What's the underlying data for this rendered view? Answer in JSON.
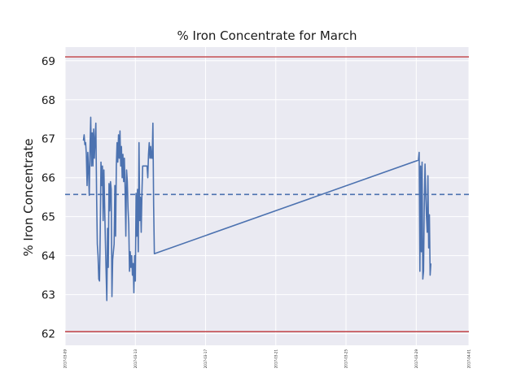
{
  "chart_data": {
    "type": "line",
    "title": "% Iron Concentrate for March",
    "xlabel": "",
    "ylabel": "% Iron Concentrate",
    "xlim": [
      "2017-03-09",
      "2017-04-01"
    ],
    "ylim": [
      61.7,
      69.35
    ],
    "x_ticks": [
      "2017-03-09",
      "2017-03-13",
      "2017-03-17",
      "2017-03-21",
      "2017-03-25",
      "2017-03-29",
      "2017-04-01"
    ],
    "y_ticks": [
      62,
      63,
      64,
      65,
      66,
      67,
      68,
      69
    ],
    "grid": true,
    "reference_lines": [
      {
        "kind": "limit",
        "y": 69.1,
        "style": "solid",
        "color": "#c44e52"
      },
      {
        "kind": "mean",
        "y": 65.57,
        "style": "dashed",
        "color": "#4c72b0"
      },
      {
        "kind": "limit",
        "y": 62.05,
        "style": "solid",
        "color": "#c44e52"
      }
    ],
    "series": [
      {
        "color": "#4c72b0",
        "points": [
          [
            "2017-03-10 01:00",
            66.95
          ],
          [
            "2017-03-10 02:00",
            67.1
          ],
          [
            "2017-03-10 03:00",
            66.85
          ],
          [
            "2017-03-10 04:00",
            66.9
          ],
          [
            "2017-03-10 05:00",
            66.6
          ],
          [
            "2017-03-10 06:00",
            65.8
          ],
          [
            "2017-03-10 07:00",
            66.65
          ],
          [
            "2017-03-10 08:00",
            66.2
          ],
          [
            "2017-03-10 09:00",
            65.55
          ],
          [
            "2017-03-10 10:00",
            66.75
          ],
          [
            "2017-03-10 11:00",
            67.55
          ],
          [
            "2017-03-10 12:00",
            66.3
          ],
          [
            "2017-03-10 13:00",
            67.15
          ],
          [
            "2017-03-10 14:00",
            66.3
          ],
          [
            "2017-03-10 15:00",
            67.25
          ],
          [
            "2017-03-10 16:00",
            66.5
          ],
          [
            "2017-03-10 17:00",
            67.0
          ],
          [
            "2017-03-10 18:00",
            67.4
          ],
          [
            "2017-03-10 19:00",
            65.6
          ],
          [
            "2017-03-10 20:00",
            64.3
          ],
          [
            "2017-03-10 21:00",
            64.0
          ],
          [
            "2017-03-10 22:00",
            63.4
          ],
          [
            "2017-03-10 23:00",
            63.35
          ],
          [
            "2017-03-11 00:00",
            64.6
          ],
          [
            "2017-03-11 01:00",
            66.4
          ],
          [
            "2017-03-11 02:00",
            65.8
          ],
          [
            "2017-03-11 03:00",
            66.3
          ],
          [
            "2017-03-11 04:00",
            64.9
          ],
          [
            "2017-03-11 05:00",
            66.2
          ],
          [
            "2017-03-11 06:00",
            65.3
          ],
          [
            "2017-03-11 07:00",
            64.4
          ],
          [
            "2017-03-11 08:00",
            63.6
          ],
          [
            "2017-03-11 09:00",
            62.85
          ],
          [
            "2017-03-11 10:00",
            64.7
          ],
          [
            "2017-03-11 11:00",
            63.7
          ],
          [
            "2017-03-11 12:00",
            65.85
          ],
          [
            "2017-03-11 13:00",
            65.15
          ],
          [
            "2017-03-11 14:00",
            65.9
          ],
          [
            "2017-03-11 15:00",
            65.7
          ],
          [
            "2017-03-11 16:00",
            62.95
          ],
          [
            "2017-03-11 17:00",
            63.9
          ],
          [
            "2017-03-11 18:00",
            64.1
          ],
          [
            "2017-03-11 19:00",
            64.3
          ],
          [
            "2017-03-11 20:00",
            65.8
          ],
          [
            "2017-03-11 21:00",
            64.5
          ],
          [
            "2017-03-11 22:00",
            66.3
          ],
          [
            "2017-03-11 23:00",
            66.9
          ],
          [
            "2017-03-12 00:00",
            66.4
          ],
          [
            "2017-03-12 01:00",
            67.1
          ],
          [
            "2017-03-12 02:00",
            66.5
          ],
          [
            "2017-03-12 03:00",
            67.2
          ],
          [
            "2017-03-12 04:00",
            66.3
          ],
          [
            "2017-03-12 05:00",
            66.8
          ],
          [
            "2017-03-12 06:00",
            66.0
          ],
          [
            "2017-03-12 07:00",
            66.6
          ],
          [
            "2017-03-12 08:00",
            65.9
          ],
          [
            "2017-03-12 09:00",
            66.5
          ],
          [
            "2017-03-12 10:00",
            65.7
          ],
          [
            "2017-03-12 11:00",
            64.5
          ],
          [
            "2017-03-12 12:00",
            66.2
          ],
          [
            "2017-03-12 13:00",
            65.9
          ],
          [
            "2017-03-12 14:00",
            65.2
          ],
          [
            "2017-03-12 15:00",
            64.8
          ],
          [
            "2017-03-12 16:00",
            63.6
          ],
          [
            "2017-03-12 17:00",
            64.1
          ],
          [
            "2017-03-12 18:00",
            63.7
          ],
          [
            "2017-03-12 19:00",
            64.0
          ],
          [
            "2017-03-12 20:00",
            63.5
          ],
          [
            "2017-03-12 21:00",
            63.8
          ],
          [
            "2017-03-12 22:00",
            63.05
          ],
          [
            "2017-03-12 23:00",
            64.0
          ],
          [
            "2017-03-13 00:00",
            63.35
          ],
          [
            "2017-03-13 01:00",
            65.6
          ],
          [
            "2017-03-13 02:00",
            64.5
          ],
          [
            "2017-03-13 03:00",
            65.7
          ],
          [
            "2017-03-13 04:00",
            64.1
          ],
          [
            "2017-03-13 05:00",
            66.9
          ],
          [
            "2017-03-13 06:00",
            64.9
          ],
          [
            "2017-03-13 07:00",
            65.5
          ],
          [
            "2017-03-13 08:00",
            64.6
          ],
          [
            "2017-03-13 09:00",
            65.6
          ],
          [
            "2017-03-13 10:00",
            66.3
          ],
          [
            "2017-03-13 12:00",
            66.3
          ],
          [
            "2017-03-13 14:00",
            66.3
          ],
          [
            "2017-03-13 16:00",
            66.3
          ],
          [
            "2017-03-13 17:00",
            66.0
          ],
          [
            "2017-03-13 18:00",
            66.6
          ],
          [
            "2017-03-13 19:00",
            66.9
          ],
          [
            "2017-03-13 20:00",
            66.5
          ],
          [
            "2017-03-13 21:00",
            66.8
          ],
          [
            "2017-03-13 22:00",
            66.5
          ],
          [
            "2017-03-13 23:00",
            66.5
          ],
          [
            "2017-03-14 00:00",
            67.4
          ],
          [
            "2017-03-14 01:00",
            65.3
          ],
          [
            "2017-03-14 02:00",
            64.05
          ],
          [
            "2017-03-29 03:00",
            66.45
          ],
          [
            "2017-03-29 04:00",
            66.65
          ],
          [
            "2017-03-29 05:00",
            63.6
          ],
          [
            "2017-03-29 06:00",
            66.3
          ],
          [
            "2017-03-29 07:00",
            64.1
          ],
          [
            "2017-03-29 08:00",
            66.4
          ],
          [
            "2017-03-29 09:00",
            63.4
          ],
          [
            "2017-03-29 10:00",
            63.6
          ],
          [
            "2017-03-29 11:00",
            65.3
          ],
          [
            "2017-03-29 12:00",
            66.35
          ],
          [
            "2017-03-29 13:00",
            65.6
          ],
          [
            "2017-03-29 14:00",
            65.0
          ],
          [
            "2017-03-29 15:00",
            64.6
          ],
          [
            "2017-03-29 16:00",
            66.05
          ],
          [
            "2017-03-29 17:00",
            64.2
          ],
          [
            "2017-03-29 18:00",
            65.05
          ],
          [
            "2017-03-29 19:00",
            63.5
          ],
          [
            "2017-03-29 20:00",
            63.8
          ]
        ]
      }
    ]
  },
  "colors": {
    "plot_background": "#eaeaf2",
    "grid": "#ffffff",
    "line": "#4c72b0",
    "limit": "#c44e52"
  }
}
